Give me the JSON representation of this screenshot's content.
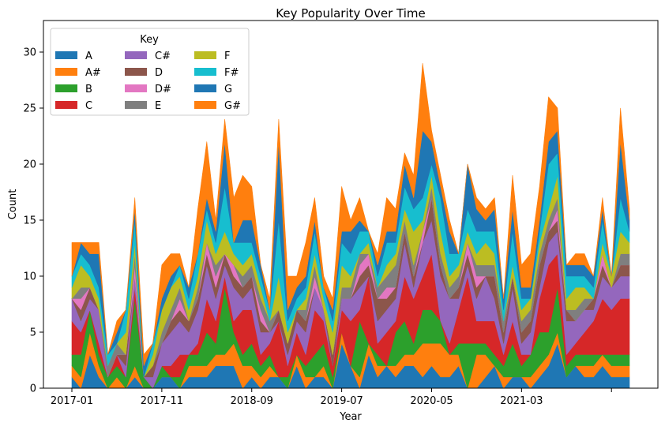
{
  "chart_data": {
    "type": "area",
    "stacked": true,
    "title": "Key Popularity Over Time",
    "xlabel": "Year",
    "ylabel": "Count",
    "ylim": [
      0,
      32.5
    ],
    "yticks": [
      0,
      5,
      10,
      15,
      20,
      25,
      30
    ],
    "xticks": [
      "2017-01",
      "2017-11",
      "2018-09",
      "2019-07",
      "2020-05",
      "2021-03",
      ""
    ],
    "legend": {
      "title": "Key",
      "placement": "top-left",
      "columns": 3
    },
    "grid": false,
    "x": [
      "2017-01",
      "2017-02",
      "2017-03",
      "2017-04",
      "2017-05",
      "2017-06",
      "2017-07",
      "2017-08",
      "2017-09",
      "2017-10",
      "2017-11",
      "2017-12",
      "2018-01",
      "2018-02",
      "2018-03",
      "2018-04",
      "2018-05",
      "2018-06",
      "2018-07",
      "2018-08",
      "2018-09",
      "2018-10",
      "2018-11",
      "2018-12",
      "2019-01",
      "2019-02",
      "2019-03",
      "2019-04",
      "2019-05",
      "2019-06",
      "2019-07",
      "2019-08",
      "2019-09",
      "2019-10",
      "2019-11",
      "2019-12",
      "2020-01",
      "2020-02",
      "2020-03",
      "2020-04",
      "2020-05",
      "2020-06",
      "2020-07",
      "2020-08",
      "2020-09",
      "2020-10",
      "2020-11",
      "2020-12",
      "2021-01",
      "2021-02",
      "2021-03",
      "2021-04",
      "2021-05",
      "2021-06",
      "2021-07",
      "2021-08",
      "2021-09",
      "2021-10",
      "2021-11",
      "2021-12",
      "2022-01",
      "2022-02",
      "2022-03"
    ],
    "series": [
      {
        "name": "A",
        "color": "#1f77b4",
        "values": [
          1,
          0,
          3,
          1,
          0,
          0,
          0,
          1,
          0,
          0,
          1,
          1,
          0,
          1,
          1,
          1,
          2,
          2,
          2,
          0,
          1,
          0,
          1,
          1,
          0,
          2,
          0,
          1,
          1,
          0,
          4,
          2,
          0,
          3,
          1,
          2,
          1,
          2,
          2,
          1,
          2,
          1,
          1,
          2,
          0,
          0,
          1,
          2,
          0,
          1,
          1,
          0,
          1,
          2,
          4,
          1,
          2,
          1,
          1,
          2,
          1,
          1,
          1
        ]
      },
      {
        "name": "A#",
        "color": "#ff7f0e",
        "values": [
          1,
          1,
          2,
          1,
          0,
          1,
          0,
          1,
          0,
          0,
          0,
          0,
          0,
          1,
          1,
          1,
          1,
          1,
          2,
          2,
          1,
          1,
          1,
          0,
          0,
          1,
          1,
          0,
          1,
          0,
          1,
          0,
          1,
          1,
          1,
          0,
          1,
          1,
          1,
          3,
          2,
          3,
          2,
          1,
          0,
          3,
          2,
          0,
          1,
          0,
          0,
          1,
          1,
          1,
          1,
          0,
          0,
          1,
          1,
          1,
          1,
          1,
          1
        ]
      },
      {
        "name": "B",
        "color": "#2ca02c",
        "values": [
          1,
          2,
          2,
          1,
          1,
          1,
          1,
          6,
          1,
          0,
          1,
          0,
          1,
          1,
          1,
          3,
          1,
          6,
          1,
          1,
          2,
          1,
          1,
          0,
          1,
          0,
          1,
          2,
          2,
          1,
          0,
          0,
          5,
          0,
          1,
          0,
          3,
          3,
          1,
          3,
          3,
          2,
          0,
          1,
          4,
          1,
          1,
          1,
          1,
          3,
          1,
          2,
          3,
          2,
          4,
          1,
          1,
          1,
          1,
          0,
          1,
          1,
          1
        ]
      },
      {
        "name": "C",
        "color": "#d62728",
        "values": [
          3,
          2,
          0,
          1,
          0,
          1,
          0,
          1,
          0,
          0,
          0,
          1,
          2,
          0,
          1,
          3,
          2,
          1,
          1,
          4,
          3,
          1,
          1,
          5,
          1,
          2,
          1,
          4,
          2,
          1,
          2,
          4,
          1,
          6,
          1,
          3,
          1,
          4,
          4,
          3,
          5,
          0,
          1,
          3,
          6,
          2,
          2,
          3,
          1,
          2,
          1,
          0,
          3,
          6,
          3,
          1,
          1,
          2,
          3,
          5,
          4,
          5,
          5
        ]
      },
      {
        "name": "C#",
        "color": "#9467bd",
        "values": [
          2,
          1,
          1,
          3,
          0,
          0,
          1,
          1,
          0,
          1,
          2,
          3,
          3,
          2,
          3,
          3,
          2,
          1,
          3,
          1,
          2,
          2,
          1,
          0,
          1,
          1,
          2,
          2,
          1,
          0,
          1,
          2,
          2,
          0,
          2,
          2,
          2,
          3,
          1,
          3,
          3,
          4,
          4,
          1,
          1,
          2,
          4,
          2,
          1,
          3,
          1,
          2,
          1,
          2,
          2,
          3,
          2,
          2,
          1,
          2,
          2,
          2,
          2
        ]
      },
      {
        "name": "D",
        "color": "#8c564b",
        "values": [
          0,
          1,
          1,
          0,
          0,
          0,
          1,
          0,
          0,
          1,
          0,
          1,
          1,
          1,
          1,
          1,
          1,
          1,
          1,
          1,
          1,
          1,
          0,
          1,
          1,
          1,
          1,
          0,
          0,
          1,
          0,
          0,
          1,
          1,
          2,
          1,
          1,
          1,
          1,
          0,
          2,
          1,
          0,
          1,
          1,
          1,
          0,
          2,
          1,
          1,
          1,
          1,
          2,
          1,
          1,
          1,
          0,
          0,
          1,
          1,
          0,
          1,
          1
        ]
      },
      {
        "name": "D#",
        "color": "#e377c2",
        "values": [
          0,
          1,
          0,
          0,
          0,
          0,
          0,
          1,
          0,
          0,
          0,
          0,
          1,
          0,
          0,
          1,
          1,
          0,
          1,
          0,
          0,
          1,
          0,
          0,
          0,
          0,
          0,
          1,
          0,
          0,
          0,
          0,
          1,
          1,
          0,
          1,
          0,
          0,
          0,
          1,
          0,
          0,
          0,
          0,
          1,
          1,
          0,
          0,
          0,
          0,
          0,
          0,
          0,
          0,
          1,
          0,
          0,
          0,
          0,
          1,
          0,
          0,
          0
        ]
      },
      {
        "name": "E",
        "color": "#7f7f7f",
        "values": [
          0,
          1,
          0,
          0,
          1,
          1,
          0,
          1,
          0,
          0,
          1,
          1,
          1,
          0,
          1,
          0,
          1,
          0,
          0,
          1,
          1,
          1,
          1,
          0,
          0,
          0,
          1,
          1,
          0,
          0,
          1,
          1,
          1,
          0,
          1,
          1,
          2,
          1,
          1,
          0,
          1,
          1,
          1,
          1,
          0,
          1,
          1,
          1,
          1,
          0,
          1,
          1,
          1,
          1,
          1,
          0,
          1,
          1,
          0,
          0,
          0,
          1,
          1
        ]
      },
      {
        "name": "F",
        "color": "#bcbd22",
        "values": [
          1,
          2,
          1,
          1,
          0,
          0,
          2,
          1,
          0,
          1,
          2,
          2,
          1,
          1,
          1,
          2,
          1,
          2,
          1,
          1,
          1,
          1,
          0,
          3,
          1,
          0,
          1,
          1,
          1,
          2,
          2,
          1,
          0,
          1,
          0,
          1,
          1,
          1,
          3,
          1,
          1,
          2,
          1,
          1,
          1,
          1,
          2,
          1,
          0,
          1,
          1,
          1,
          1,
          1,
          2,
          1,
          2,
          1,
          0,
          1,
          1,
          2,
          1
        ]
      },
      {
        "name": "F#",
        "color": "#17becf",
        "values": [
          1,
          1,
          1,
          1,
          1,
          0,
          2,
          2,
          0,
          1,
          0,
          0,
          1,
          1,
          2,
          1,
          1,
          4,
          1,
          2,
          1,
          1,
          1,
          5,
          1,
          1,
          1,
          2,
          1,
          1,
          2,
          2,
          2,
          1,
          1,
          2,
          1,
          2,
          2,
          2,
          1,
          3,
          2,
          1,
          2,
          2,
          1,
          2,
          1,
          3,
          1,
          0,
          1,
          4,
          2,
          2,
          1,
          1,
          1,
          2,
          0,
          3,
          1
        ]
      },
      {
        "name": "G",
        "color": "#1f77b4",
        "values": [
          0,
          1,
          1,
          3,
          0,
          1,
          0,
          1,
          1,
          0,
          1,
          1,
          0,
          1,
          0,
          1,
          1,
          4,
          0,
          2,
          2,
          1,
          0,
          7,
          1,
          1,
          1,
          1,
          0,
          1,
          1,
          2,
          1,
          0,
          1,
          1,
          1,
          2,
          1,
          6,
          2,
          1,
          2,
          0,
          4,
          2,
          1,
          2,
          1,
          2,
          1,
          1,
          1,
          2,
          2,
          1,
          1,
          1,
          1,
          1,
          0,
          5,
          1
        ]
      },
      {
        "name": "G#",
        "color": "#ff7f0e",
        "values": [
          3,
          0,
          1,
          1,
          0,
          1,
          0,
          1,
          1,
          0,
          3,
          2,
          1,
          0,
          4,
          5,
          1,
          2,
          4,
          4,
          3,
          0,
          1,
          2,
          3,
          1,
          3,
          2,
          1,
          1,
          4,
          1,
          2,
          0,
          1,
          3,
          2,
          1,
          2,
          6,
          1,
          1,
          1,
          0,
          0,
          1,
          1,
          1,
          0,
          3,
          2,
          3,
          3,
          4,
          2,
          0,
          1,
          1,
          0,
          1,
          0,
          3,
          1
        ]
      }
    ]
  }
}
